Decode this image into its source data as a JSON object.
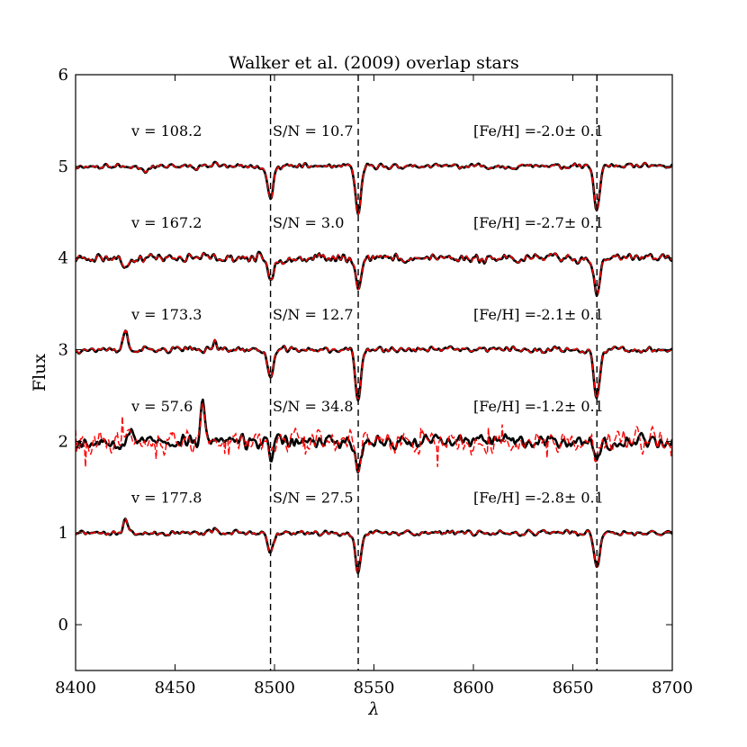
{
  "chart_data": {
    "type": "line",
    "title": "Walker et al. (2009) overlap stars",
    "xlabel": "λ",
    "ylabel": "Flux",
    "xlim": [
      8400,
      8700
    ],
    "ylim": [
      -0.5,
      6
    ],
    "x_ticks": [
      "8400",
      "8450",
      "8500",
      "8550",
      "8600",
      "8650",
      "8700"
    ],
    "y_ticks": [
      "0",
      "1",
      "2",
      "3",
      "4",
      "5",
      "6"
    ],
    "grid": false,
    "reference_lines": [
      8498.0,
      8542.1,
      8662.1
    ],
    "colors": {
      "observed": "#000000",
      "model": "#ff0000"
    },
    "series": [
      {
        "offset": 5,
        "seed": 11,
        "noise": 0.025,
        "depths": [
          0.35,
          0.52,
          0.48
        ],
        "extra": [
          [
            8435,
            -0.06
          ],
          [
            8470,
            0.05
          ]
        ],
        "labels": {
          "v": "v = 108.2",
          "sn": "S/N = 10.7",
          "feh": "[Fe/H] =-2.0± 0.1"
        }
      },
      {
        "offset": 4,
        "seed": 23,
        "noise": 0.045,
        "depths": [
          0.25,
          0.33,
          0.42
        ],
        "extra": [
          [
            8425,
            -0.12
          ]
        ],
        "labels": {
          "v": "v = 167.2",
          "sn": "S/N = 3.0",
          "feh": "[Fe/H] =-2.7± 0.1"
        }
      },
      {
        "offset": 3,
        "seed": 37,
        "noise": 0.03,
        "depths": [
          0.32,
          0.55,
          0.52
        ],
        "extra": [
          [
            8425,
            0.2
          ],
          [
            8470,
            0.1
          ]
        ],
        "labels": {
          "v": "v = 173.3",
          "sn": "S/N = 12.7",
          "feh": "[Fe/H] =-2.1± 0.1"
        }
      },
      {
        "offset": 2,
        "seed": 53,
        "noise": 0.07,
        "depths": [
          0.15,
          0.35,
          0.15
        ],
        "extra": [
          [
            8464,
            0.38
          ],
          [
            8428,
            0.15
          ]
        ],
        "noisy": true,
        "labels": {
          "v": "v = 57.6",
          "sn": "S/N = 34.8",
          "feh": "[Fe/H] =-1.2± 0.1"
        }
      },
      {
        "offset": 1,
        "seed": 71,
        "noise": 0.025,
        "depths": [
          0.22,
          0.42,
          0.38
        ],
        "extra": [
          [
            8425,
            0.15
          ],
          [
            8470,
            0.05
          ]
        ],
        "labels": {
          "v": "v = 177.8",
          "sn": "S/N = 27.5",
          "feh": "[Fe/H] =-2.8± 0.1"
        }
      }
    ]
  }
}
